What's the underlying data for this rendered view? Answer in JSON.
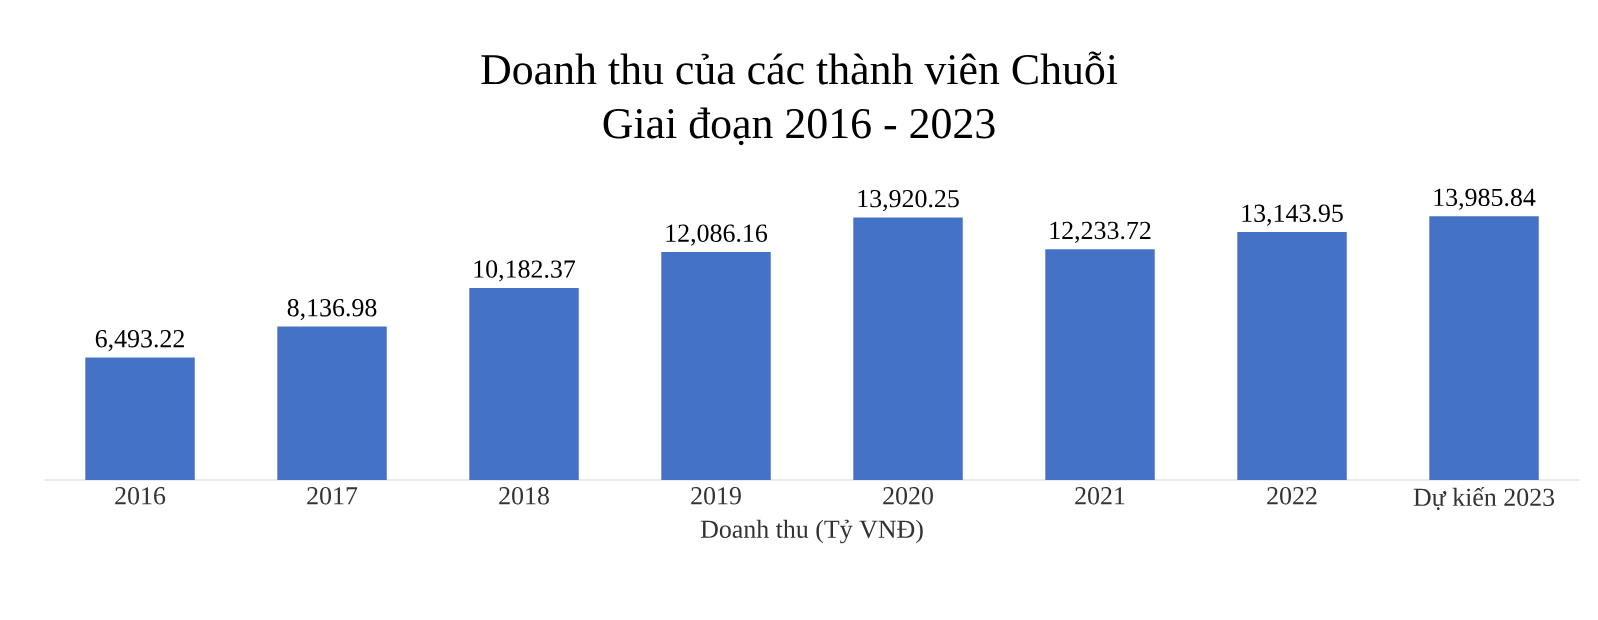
{
  "chart_data": {
    "type": "bar",
    "title": "Doanh thu của các thành viên Chuỗi",
    "subtitle": "Giai đoạn 2016 - 2023",
    "xlabel": "Doanh thu (Tỷ VNĐ)",
    "categories": [
      "2016",
      "2017",
      "2018",
      "2019",
      "2020",
      "2021",
      "2022",
      "Dự kiến 2023"
    ],
    "values": [
      6493.22,
      8136.98,
      10182.37,
      12086.16,
      13920.25,
      12233.72,
      13143.95,
      13985.84
    ],
    "value_labels": [
      "6,493.22",
      "8,136.98",
      "10,182.37",
      "12,086.16",
      "13,920.25",
      "12,233.72",
      "13,143.95",
      "13,985.84"
    ],
    "color": "#4472c4"
  }
}
